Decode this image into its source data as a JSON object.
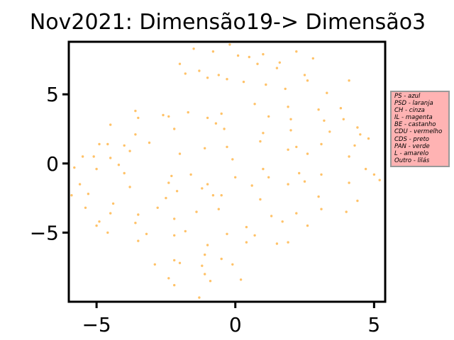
{
  "chart_data": {
    "type": "scatter",
    "title": "Nov2021: Dimensão19-> Dimensão3",
    "xlabel": "",
    "ylabel": "",
    "xlim": [
      -6.0,
      5.4
    ],
    "ylim": [
      -10.0,
      8.8
    ],
    "x_ticks": [
      -5,
      0,
      5
    ],
    "y_ticks": [
      -5,
      0,
      5
    ],
    "x_tick_labels": [
      "−5",
      "0",
      "5"
    ],
    "y_tick_labels": [
      "−5",
      "0",
      "5"
    ],
    "grid": false,
    "legend_placement": "right, outside plot",
    "marker_color": "#ffb74d",
    "legend_background": "#ffb3b3",
    "legend_border": "#999999",
    "legend_entries": [
      "PS - azul",
      "PSD - laranja",
      "CH - cinza",
      "IL - magenta",
      "BE - castanho",
      "CDU - vermelho",
      "CDS - preto",
      "PAN - verde",
      "L - amarelo",
      "Outro - lilás"
    ],
    "series": [
      {
        "x": [
          -1.5,
          -0.8,
          -0.2,
          0.5,
          1.0,
          1.6,
          2.2,
          2.8,
          -2.0,
          -1.3,
          -0.6,
          0.1,
          0.8,
          1.5,
          2.5,
          -1.8,
          -1.0,
          -0.3,
          0.3,
          1.1,
          1.8,
          2.6,
          3.3,
          4.1,
          -3.6,
          -2.6,
          -1.7,
          -0.5,
          0.7,
          1.9,
          3.0,
          3.8,
          -3.5,
          -2.4,
          -1.0,
          -0.7,
          1.2,
          2.0,
          3.2,
          3.9,
          4.4,
          -4.5,
          -3.6,
          -2.2,
          -0.4,
          1.0,
          2.0,
          3.4,
          4.5,
          -4.6,
          -4.9,
          -4.0,
          -3.1,
          -0.3,
          0.9,
          2.2,
          3.1,
          4.3,
          4.8,
          -5.5,
          -5.1,
          -4.5,
          -3.8,
          -2.0,
          -1.1,
          -0.1,
          1.9,
          2.6,
          4.1,
          -5.8,
          -5.0,
          -4.2,
          -2.3,
          -1.6,
          1.0,
          2.3,
          4.7,
          5.2,
          -5.6,
          -4.0,
          -2.4,
          -1.0,
          0.0,
          1.2,
          2.5,
          3.1,
          5.0,
          -5.9,
          -5.3,
          -3.8,
          -2.1,
          -1.2,
          -0.5,
          0.6,
          1.9,
          4.1,
          -5.4,
          -4.4,
          -2.5,
          -0.8,
          0.9,
          3.0,
          4.4,
          -4.5,
          -3.5,
          -2.8,
          -1.4,
          -0.6,
          1.3,
          2.2,
          3.1,
          4.0,
          -5.0,
          -4.9,
          -3.6,
          -2.2,
          0.4,
          1.7,
          2.6,
          -4.6,
          -3.2,
          -1.8,
          -0.3,
          0.7,
          1.9,
          -3.5,
          -2.2,
          -1.0,
          0.4,
          1.5,
          -2.9,
          -2.2,
          -1.1,
          -0.5,
          -2.0,
          -1.2,
          -0.1,
          -2.4,
          -1.1,
          0.2,
          -2.2,
          -0.9,
          -1.3
        ],
        "y": [
          8.3,
          8.1,
          8.6,
          7.7,
          7.9,
          7.3,
          8.1,
          7.6,
          7.2,
          6.7,
          6.4,
          7.8,
          7.2,
          6.9,
          6.4,
          6.5,
          6.2,
          6.1,
          5.9,
          5.7,
          5.4,
          6.0,
          5.1,
          6.0,
          3.8,
          3.5,
          3.7,
          3.6,
          4.3,
          4.1,
          3.9,
          4.0,
          3.3,
          3.4,
          3.3,
          2.9,
          3.4,
          3.2,
          3.1,
          3.2,
          2.6,
          2.8,
          2.1,
          2.5,
          2.5,
          2.2,
          2.4,
          2.3,
          2.1,
          1.4,
          1.4,
          1.3,
          1.5,
          1.2,
          1.6,
          1.2,
          1.4,
          1.3,
          1.8,
          0.5,
          0.5,
          0.4,
          0.9,
          0.7,
          1.1,
          0.3,
          1.0,
          0.7,
          0.5,
          -0.3,
          -0.4,
          -0.1,
          -0.9,
          -0.8,
          -0.4,
          -0.7,
          -0.4,
          -1.2,
          -1.5,
          -0.7,
          -1.4,
          -1.5,
          -1.0,
          -1.0,
          -1.3,
          -0.8,
          -0.8,
          -2.3,
          -2.2,
          -1.7,
          -2.0,
          -1.8,
          -2.3,
          -1.6,
          -1.5,
          -1.4,
          -3.2,
          -2.9,
          -2.5,
          -2.3,
          -2.6,
          -2.4,
          -2.7,
          -3.6,
          -3.7,
          -3.2,
          -3.5,
          -3.3,
          -3.8,
          -3.6,
          -3.3,
          -3.5,
          -4.5,
          -4.2,
          -4.3,
          -4.0,
          -4.6,
          -4.2,
          -4.5,
          -5.0,
          -5.1,
          -4.9,
          -5.1,
          -5.2,
          -5.7,
          -5.6,
          -5.2,
          -5.9,
          -5.7,
          -5.8,
          -7.3,
          -7.0,
          -6.6,
          -6.9,
          -7.2,
          -7.4,
          -7.3,
          -8.3,
          -8.0,
          -8.4,
          -8.8,
          -8.5,
          -9.7
        ]
      }
    ]
  }
}
